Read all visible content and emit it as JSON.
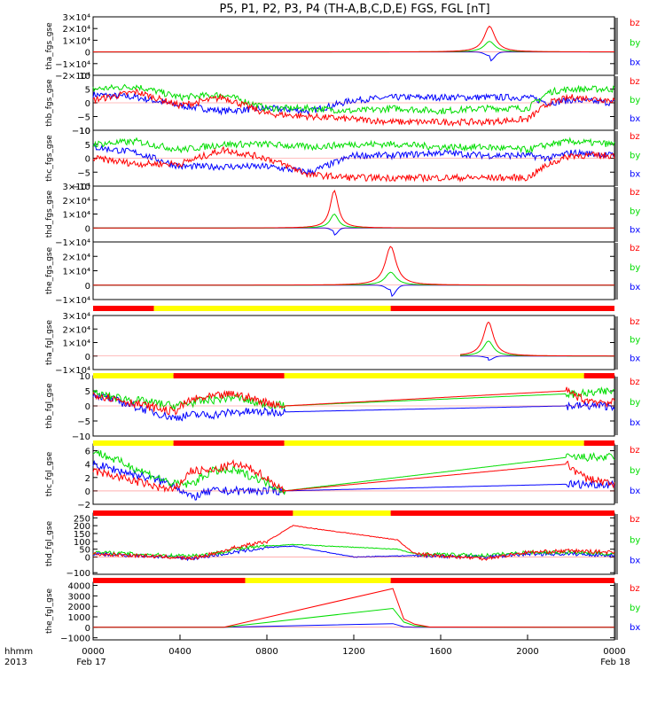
{
  "chart_data": {
    "type": "line",
    "title": "P5, P1, P2, P3, P4 (TH-A,B,C,D,E) FGS, FGL [nT]",
    "x_ticks": [
      "0000",
      "0400",
      "0800",
      "1200",
      "1600",
      "2000",
      "0000"
    ],
    "x_tick_hours": [
      0,
      4,
      8,
      12,
      16,
      20,
      24
    ],
    "x_date_labels": [
      "Feb 17",
      "Feb 18"
    ],
    "corner_labels": [
      "hhmm",
      "2013"
    ],
    "x_range_hours": [
      0,
      24
    ],
    "colors": {
      "bz": "#ff0000",
      "by": "#00dd00",
      "bx": "#0000ff"
    },
    "legend": [
      "bz",
      "by",
      "bx"
    ],
    "panels": [
      {
        "name": "tha_fgs_gse",
        "ylim": [
          -20000,
          30000
        ],
        "ticks": [
          30000,
          20000,
          10000,
          0,
          -10000,
          -20000
        ],
        "tick_labels": [
          "3×10⁴",
          "2×10⁴",
          "1×10⁴",
          "0",
          "−1×10⁴",
          "−2×10⁴"
        ],
        "kind": "peak",
        "data_start": 0,
        "peak_time": 18.25,
        "peak_bz": 22000,
        "peak_by": 9000,
        "peak_bx": -8000,
        "width": 0.3
      },
      {
        "name": "thb_fgs_gse",
        "ylim": [
          -10,
          10
        ],
        "ticks": [
          10,
          5,
          0,
          -5,
          -10
        ],
        "tick_labels": [
          "10",
          "5",
          "0",
          "−5",
          "−10"
        ],
        "kind": "noisy",
        "bz": [
          [
            0,
            1
          ],
          [
            2,
            4
          ],
          [
            4,
            -1
          ],
          [
            6,
            2
          ],
          [
            8,
            -4
          ],
          [
            10,
            -5
          ],
          [
            12,
            -6
          ],
          [
            14,
            -7
          ],
          [
            16,
            -7
          ],
          [
            18,
            -7
          ],
          [
            20,
            -6
          ],
          [
            21,
            0
          ],
          [
            22,
            2
          ],
          [
            24,
            1
          ]
        ],
        "by": [
          [
            0,
            5
          ],
          [
            2,
            6
          ],
          [
            4,
            2
          ],
          [
            6,
            3
          ],
          [
            8,
            -2
          ],
          [
            10,
            -2
          ],
          [
            12,
            -3
          ],
          [
            14,
            -2
          ],
          [
            16,
            -3
          ],
          [
            18,
            -2
          ],
          [
            20,
            -2
          ],
          [
            21,
            4
          ],
          [
            22,
            5
          ],
          [
            24,
            5
          ]
        ],
        "bx": [
          [
            0,
            3
          ],
          [
            2,
            2
          ],
          [
            4,
            -1
          ],
          [
            6,
            -3
          ],
          [
            8,
            -2
          ],
          [
            10,
            -3
          ],
          [
            12,
            1
          ],
          [
            14,
            2
          ],
          [
            16,
            2
          ],
          [
            18,
            2
          ],
          [
            20,
            2
          ],
          [
            21,
            0
          ],
          [
            22,
            1
          ],
          [
            24,
            0
          ]
        ]
      },
      {
        "name": "thc_fgs_gse",
        "ylim": [
          -10,
          10
        ],
        "ticks": [
          10,
          5,
          0,
          -5,
          -10
        ],
        "tick_labels": [
          "10",
          "5",
          "0",
          "−5",
          "−10"
        ],
        "kind": "noisy",
        "bz": [
          [
            0,
            0
          ],
          [
            2,
            -2
          ],
          [
            4,
            -2
          ],
          [
            6,
            3
          ],
          [
            8,
            0
          ],
          [
            10,
            -6
          ],
          [
            12,
            -7
          ],
          [
            14,
            -7
          ],
          [
            16,
            -7
          ],
          [
            18,
            -7
          ],
          [
            20,
            -7
          ],
          [
            21,
            -2
          ],
          [
            22,
            1
          ],
          [
            24,
            1
          ]
        ],
        "by": [
          [
            0,
            5
          ],
          [
            2,
            6
          ],
          [
            4,
            3
          ],
          [
            6,
            5
          ],
          [
            8,
            5
          ],
          [
            10,
            4
          ],
          [
            12,
            5
          ],
          [
            14,
            5
          ],
          [
            16,
            4
          ],
          [
            18,
            4
          ],
          [
            20,
            3
          ],
          [
            21,
            5
          ],
          [
            22,
            6
          ],
          [
            24,
            5
          ]
        ],
        "bx": [
          [
            0,
            4
          ],
          [
            2,
            2
          ],
          [
            4,
            -3
          ],
          [
            6,
            -3
          ],
          [
            8,
            -3
          ],
          [
            10,
            -5
          ],
          [
            12,
            1
          ],
          [
            14,
            1
          ],
          [
            16,
            2
          ],
          [
            18,
            1
          ],
          [
            20,
            1
          ],
          [
            21,
            0
          ],
          [
            22,
            2
          ],
          [
            24,
            1
          ]
        ]
      },
      {
        "name": "thd_fgs_gse",
        "ylim": [
          -10000,
          30000
        ],
        "ticks": [
          30000,
          20000,
          10000,
          0,
          -10000
        ],
        "tick_labels": [
          "3×10⁴",
          "2×10⁴",
          "1×10⁴",
          "0",
          "−1×10⁴"
        ],
        "kind": "peak",
        "data_start": 0,
        "peak_time": 11.1,
        "peak_bz": 27000,
        "peak_by": 10000,
        "peak_bx": -5000,
        "width": 0.22
      },
      {
        "name": "the_fgs_gse",
        "ylim": [
          -10000,
          30000
        ],
        "ticks": [
          20000,
          10000,
          0,
          -10000
        ],
        "tick_labels": [
          "2×10⁴",
          "1×10⁴",
          "0",
          "−1×10⁴"
        ],
        "kind": "peak",
        "data_start": 0,
        "peak_time": 13.7,
        "peak_bz": 27000,
        "peak_by": 9000,
        "peak_bx": -8000,
        "width": 0.3
      },
      {
        "name": "tha_fgl_gse",
        "ylim": [
          -10000,
          30000
        ],
        "ticks": [
          30000,
          20000,
          10000,
          0,
          -10000
        ],
        "tick_labels": [
          "3×10⁴",
          "2×10⁴",
          "1×10⁴",
          "0",
          "−1×10⁴"
        ],
        "kind": "peak",
        "data_start": 16.9,
        "peak_time": 18.2,
        "peak_bz": 25000,
        "peak_by": 11000,
        "peak_bx": -3000,
        "width": 0.28
      },
      {
        "name": "thb_fgl_gse",
        "ylim": [
          -10,
          10
        ],
        "ticks": [
          10,
          5,
          0,
          -5,
          -10
        ],
        "tick_labels": [
          "10",
          "5",
          "0",
          "−5",
          "−10"
        ],
        "kind": "gap",
        "bz": [
          [
            0,
            4
          ],
          [
            3.7,
            -2
          ],
          [
            4.5,
            2
          ],
          [
            5.5,
            3
          ],
          [
            6.5,
            4
          ],
          [
            7.5,
            2
          ],
          [
            8.8,
            0
          ],
          [
            21.8,
            5
          ],
          [
            22.6,
            2
          ],
          [
            24,
            1
          ]
        ],
        "by": [
          [
            0,
            4
          ],
          [
            3.7,
            0
          ],
          [
            4.5,
            1
          ],
          [
            5.5,
            2
          ],
          [
            6.5,
            3
          ],
          [
            7.5,
            1
          ],
          [
            8.8,
            0
          ],
          [
            21.8,
            4
          ],
          [
            22.6,
            4
          ],
          [
            24,
            5
          ]
        ],
        "bx": [
          [
            0,
            4
          ],
          [
            3.7,
            -4
          ],
          [
            4.5,
            -3
          ],
          [
            5.5,
            -3
          ],
          [
            6.5,
            -2
          ],
          [
            7.5,
            -2
          ],
          [
            8.8,
            -2
          ],
          [
            21.8,
            0
          ],
          [
            22.6,
            0
          ],
          [
            24,
            0
          ]
        ]
      },
      {
        "name": "thc_fgl_gse",
        "ylim": [
          -2,
          7
        ],
        "ticks": [
          6,
          4,
          2,
          0,
          -2
        ],
        "tick_labels": [
          "6",
          "4",
          "2",
          "0",
          "−2"
        ],
        "kind": "gap",
        "bz": [
          [
            0,
            3
          ],
          [
            3.7,
            0
          ],
          [
            4.5,
            3
          ],
          [
            5.5,
            3
          ],
          [
            6.5,
            4
          ],
          [
            7.5,
            3
          ],
          [
            8.8,
            0
          ],
          [
            21.8,
            4
          ],
          [
            22.6,
            2
          ],
          [
            24,
            1
          ]
        ],
        "by": [
          [
            0,
            6
          ],
          [
            3.7,
            1
          ],
          [
            4.5,
            1
          ],
          [
            5.5,
            3
          ],
          [
            6.5,
            3
          ],
          [
            7.5,
            2
          ],
          [
            8.8,
            0
          ],
          [
            21.8,
            5
          ],
          [
            22.6,
            5
          ],
          [
            24,
            5
          ]
        ],
        "bx": [
          [
            0,
            4
          ],
          [
            3.7,
            1
          ],
          [
            4.5,
            -1
          ],
          [
            5.5,
            0
          ],
          [
            6.5,
            0
          ],
          [
            7.5,
            0
          ],
          [
            8.8,
            0
          ],
          [
            21.8,
            1
          ],
          [
            22.6,
            1
          ],
          [
            24,
            1
          ]
        ]
      },
      {
        "name": "thd_fgl_gse",
        "ylim": [
          -110,
          280
        ],
        "ticks": [
          250,
          200,
          150,
          100,
          50,
          0,
          -100
        ],
        "tick_labels": [
          "250",
          "200",
          "150",
          "100",
          "50",
          "0",
          "−100"
        ],
        "kind": "ramp",
        "bz": [
          [
            0,
            20
          ],
          [
            2,
            10
          ],
          [
            3.5,
            0
          ],
          [
            4.5,
            -10
          ],
          [
            5.5,
            20
          ],
          [
            6.5,
            60
          ],
          [
            8,
            100
          ],
          [
            9.2,
            200
          ],
          [
            14,
            110
          ],
          [
            14.8,
            20
          ],
          [
            18,
            -10
          ],
          [
            20,
            30
          ],
          [
            22,
            40
          ],
          [
            24,
            30
          ]
        ],
        "by": [
          [
            0,
            30
          ],
          [
            2,
            20
          ],
          [
            3.5,
            10
          ],
          [
            4.5,
            10
          ],
          [
            5.5,
            20
          ],
          [
            6.5,
            50
          ],
          [
            8,
            70
          ],
          [
            9.2,
            80
          ],
          [
            14,
            50
          ],
          [
            14.8,
            20
          ],
          [
            18,
            10
          ],
          [
            20,
            30
          ],
          [
            22,
            30
          ],
          [
            24,
            20
          ]
        ],
        "bx": [
          [
            0,
            20
          ],
          [
            2,
            10
          ],
          [
            3.5,
            0
          ],
          [
            4.5,
            -10
          ],
          [
            5.5,
            10
          ],
          [
            6.5,
            30
          ],
          [
            8,
            60
          ],
          [
            9.2,
            70
          ],
          [
            12,
            0
          ],
          [
            14.8,
            10
          ],
          [
            18,
            0
          ],
          [
            20,
            20
          ],
          [
            22,
            20
          ],
          [
            24,
            10
          ]
        ]
      },
      {
        "name": "the_fgl_gse",
        "ylim": [
          -1200,
          4300
        ],
        "ticks": [
          4000,
          3000,
          2000,
          1000,
          0,
          -1000
        ],
        "tick_labels": [
          "4000",
          "3000",
          "2000",
          "1000",
          "0",
          "−1000"
        ],
        "kind": "ramp",
        "bz": [
          [
            0,
            0
          ],
          [
            6,
            0
          ],
          [
            13.8,
            3700
          ],
          [
            14.3,
            800
          ],
          [
            14.8,
            300
          ],
          [
            15.5,
            30
          ],
          [
            24,
            0
          ]
        ],
        "by": [
          [
            0,
            0
          ],
          [
            6,
            0
          ],
          [
            13.8,
            1800
          ],
          [
            14.3,
            500
          ],
          [
            14.8,
            150
          ],
          [
            15.5,
            20
          ],
          [
            24,
            0
          ]
        ],
        "bx": [
          [
            0,
            0
          ],
          [
            6,
            0
          ],
          [
            13.8,
            350
          ],
          [
            14.3,
            50
          ],
          [
            14.8,
            10
          ],
          [
            15.5,
            0
          ],
          [
            24,
            0
          ]
        ]
      }
    ]
  }
}
